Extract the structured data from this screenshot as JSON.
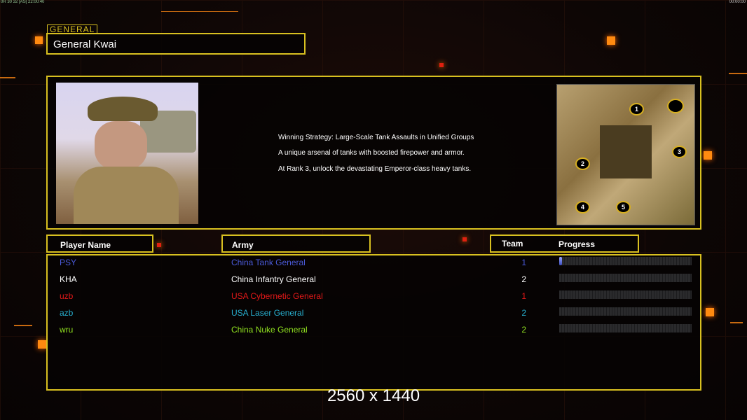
{
  "status_bar": {
    "left": "0R 30 32 [AS] 22:00:40",
    "right": "00:00:00"
  },
  "general": {
    "section_label": "GENERAL",
    "name": "General Kwai"
  },
  "description": [
    "Winning Strategy: Large-Scale Tank Assaults in Unified Groups",
    "A unique arsenal of tanks with boosted firepower and armor.",
    "At Rank 3, unlock the devastating Emperor-class heavy tanks."
  ],
  "map": {
    "start_positions": [
      "1",
      "2",
      "3",
      "4",
      "5"
    ]
  },
  "headers": {
    "player_name": "Player Name",
    "army": "Army",
    "team": "Team",
    "progress": "Progress"
  },
  "players": [
    {
      "name": "PSY",
      "army": "China Tank General",
      "team": "1",
      "progress": 2,
      "color": "#4a5ad8"
    },
    {
      "name": "KHA",
      "army": "China Infantry General",
      "team": "2",
      "progress": 0,
      "color": "#ffffff"
    },
    {
      "name": "uzb",
      "army": "USA Cybernetic General",
      "team": "1",
      "progress": 0,
      "color": "#e01818"
    },
    {
      "name": "azb",
      "army": "USA Laser General",
      "team": "2",
      "progress": 0,
      "color": "#28b0d0"
    },
    {
      "name": "wru",
      "army": "China Nuke General",
      "team": "2",
      "progress": 0,
      "color": "#90e020"
    }
  ],
  "watermark": "2560 x 1440",
  "colors": {
    "accent": "#d8c020",
    "orange": "#ff8a10"
  }
}
